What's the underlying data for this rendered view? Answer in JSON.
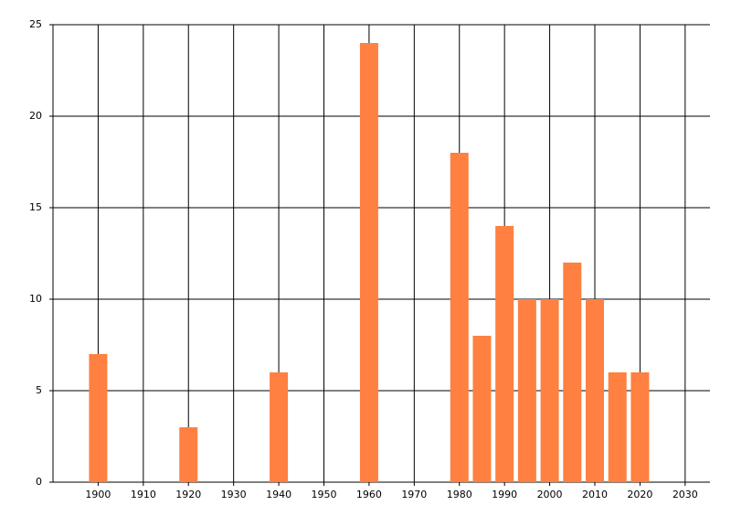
{
  "chart_data": {
    "type": "bar",
    "x": [
      1900,
      1920,
      1940,
      1960,
      1980,
      1985,
      1990,
      1995,
      2000,
      2005,
      2010,
      2015,
      2020
    ],
    "values": [
      7,
      3,
      6,
      24,
      18,
      8,
      14,
      10,
      10,
      12,
      10,
      6,
      6
    ],
    "color": "#ff8040",
    "xlim": [
      1890,
      2035.5
    ],
    "xticks": [
      1900,
      1910,
      1920,
      1930,
      1940,
      1950,
      1960,
      1970,
      1980,
      1990,
      2000,
      2010,
      2020,
      2030
    ],
    "ylim": [
      0,
      25
    ],
    "yticks": [
      0,
      5,
      10,
      15,
      20,
      25
    ],
    "grid": true
  }
}
